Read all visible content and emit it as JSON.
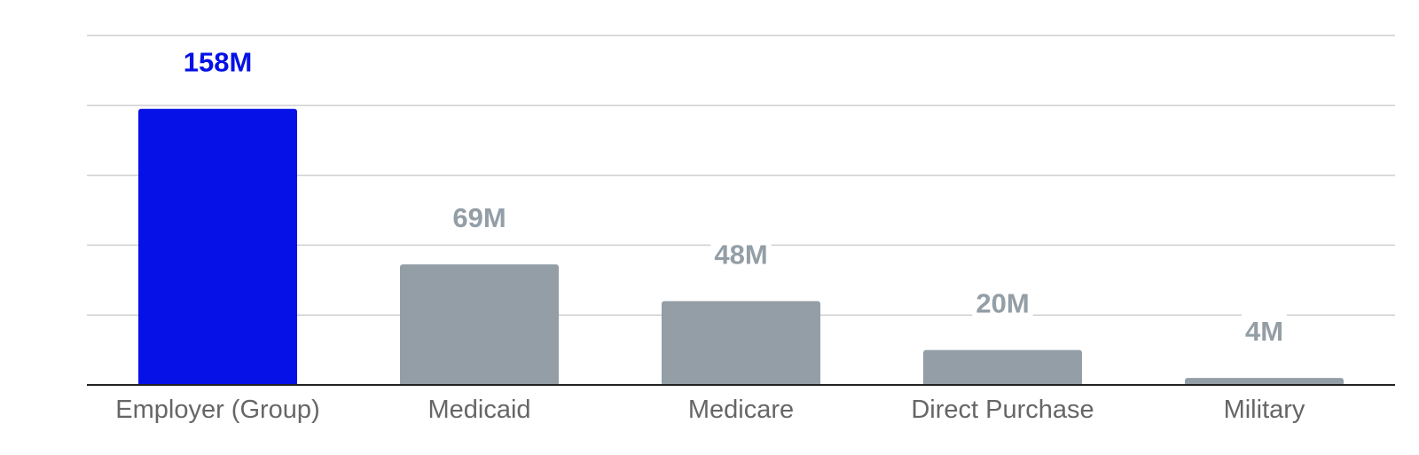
{
  "chart_data": {
    "type": "bar",
    "categories": [
      "Employer (Group)",
      "Medicaid",
      "Medicare",
      "Direct Purchase",
      "Military"
    ],
    "values": [
      158,
      69,
      48,
      20,
      4
    ],
    "data_labels": [
      "158M",
      "69M",
      "48M",
      "20M",
      "4M"
    ],
    "title": "",
    "xlabel": "",
    "ylabel": "",
    "ylim": [
      0,
      200
    ],
    "grid": true,
    "legend": "none",
    "highlight_index": 0,
    "colors": {
      "highlight": "#0511e6",
      "default": "#939ea6",
      "highlight_label": "#0511e6",
      "default_label": "#939ea6"
    }
  }
}
